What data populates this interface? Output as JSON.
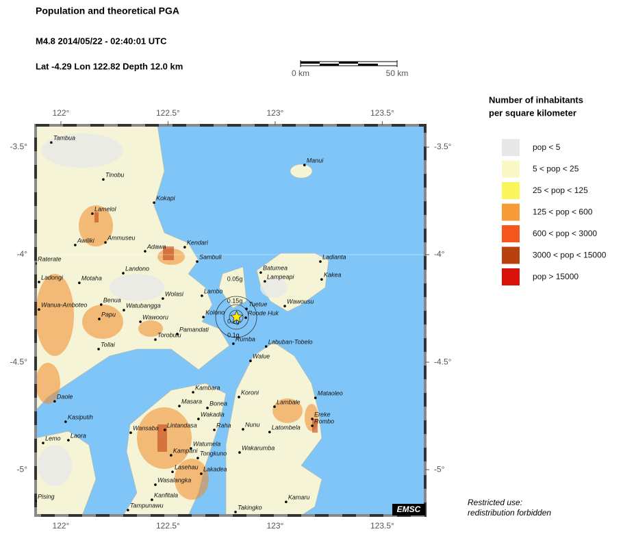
{
  "header": {
    "title": "Population and theoretical PGA",
    "event": "M4.8  2014/05/22 - 02:40:01 UTC",
    "location": "Lat -4.29    Lon 122.82     Depth  12.0 km"
  },
  "scale_bar": {
    "labels": [
      "0 km",
      "50 km"
    ]
  },
  "map": {
    "lonlim": [
      121.882,
      123.7
    ],
    "latlim": [
      -5.213,
      -3.398
    ],
    "lonticks": [
      {
        "value": 122,
        "label": "122°"
      },
      {
        "value": 122.5,
        "label": "122.5°"
      },
      {
        "value": 123,
        "label": "123°"
      },
      {
        "value": 123.5,
        "label": "123.5°"
      }
    ],
    "latticks": [
      {
        "value": -3.5,
        "label": "-3.5°"
      },
      {
        "value": -4,
        "label": "-4°"
      },
      {
        "value": -4.5,
        "label": "-4.5°"
      },
      {
        "value": -5,
        "label": "-5°"
      }
    ],
    "epicenter": {
      "lon": 122.82,
      "lat": -4.29
    },
    "pga_labels": [
      {
        "text": "0.05g",
        "lon": 122.812,
        "lat": -4.115
      },
      {
        "text": "0.15g",
        "lon": 122.812,
        "lat": -4.217
      },
      {
        "text": "0.2g",
        "lon": 122.805,
        "lat": -4.312
      },
      {
        "text": "0.1g",
        "lon": 122.805,
        "lat": -4.376
      }
    ],
    "places": [
      {
        "name": "Tambua",
        "lon": 121.955,
        "lat": -3.478
      },
      {
        "name": "Tinobu",
        "lon": 122.198,
        "lat": -3.65
      },
      {
        "name": "Lamelol",
        "lon": 122.147,
        "lat": -3.809
      },
      {
        "name": "Kokapi",
        "lon": 122.435,
        "lat": -3.758
      },
      {
        "name": "Awiliki",
        "lon": 122.067,
        "lat": -3.955
      },
      {
        "name": "Ammuseu",
        "lon": 122.208,
        "lat": -3.943
      },
      {
        "name": "Adawa",
        "lon": 122.393,
        "lat": -3.984
      },
      {
        "name": "Kendari",
        "lon": 122.578,
        "lat": -3.965
      },
      {
        "name": "Sambuli",
        "lon": 122.636,
        "lat": -4.032
      },
      {
        "name": "Raterate",
        "lon": 121.882,
        "lat": -4.041
      },
      {
        "name": "Ladongi",
        "lon": 121.898,
        "lat": -4.127
      },
      {
        "name": "Motaha",
        "lon": 122.086,
        "lat": -4.131
      },
      {
        "name": "Landono",
        "lon": 122.291,
        "lat": -4.086
      },
      {
        "name": "Wolasi",
        "lon": 122.476,
        "lat": -4.204
      },
      {
        "name": "Lambo",
        "lon": 122.658,
        "lat": -4.191
      },
      {
        "name": "Benua",
        "lon": 122.188,
        "lat": -4.232
      },
      {
        "name": "Wanua-Amboteo",
        "lon": 121.898,
        "lat": -4.255
      },
      {
        "name": "Watubangga",
        "lon": 122.294,
        "lat": -4.258
      },
      {
        "name": "Papu",
        "lon": 122.179,
        "lat": -4.299
      },
      {
        "name": "Wawooru",
        "lon": 122.371,
        "lat": -4.312
      },
      {
        "name": "Kolono",
        "lon": 122.665,
        "lat": -4.29
      },
      {
        "name": "Tuetue",
        "lon": 122.866,
        "lat": -4.252
      },
      {
        "name": "Roode Huk",
        "lon": 122.863,
        "lat": -4.293
      },
      {
        "name": "Pamandati",
        "lon": 122.543,
        "lat": -4.369
      },
      {
        "name": "Torobulu",
        "lon": 122.441,
        "lat": -4.395
      },
      {
        "name": "Rumba",
        "lon": 122.805,
        "lat": -4.414
      },
      {
        "name": "Tollai",
        "lon": 122.176,
        "lat": -4.439
      },
      {
        "name": "Batumea",
        "lon": 122.933,
        "lat": -4.083
      },
      {
        "name": "Lampeapi",
        "lon": 122.952,
        "lat": -4.124
      },
      {
        "name": "Wawousu",
        "lon": 123.045,
        "lat": -4.239
      },
      {
        "name": "Ladianta",
        "lon": 123.211,
        "lat": -4.032
      },
      {
        "name": "Kakea",
        "lon": 123.217,
        "lat": -4.115
      },
      {
        "name": "Manui",
        "lon": 123.137,
        "lat": -3.583
      },
      {
        "name": "Labuban-Tobelo",
        "lon": 122.958,
        "lat": -4.427
      },
      {
        "name": "Walue",
        "lon": 122.885,
        "lat": -4.494
      },
      {
        "name": "Daole",
        "lon": 121.971,
        "lat": -4.682
      },
      {
        "name": "Kasiputih",
        "lon": 122.022,
        "lat": -4.777
      },
      {
        "name": "Lemo",
        "lon": 121.917,
        "lat": -4.876
      },
      {
        "name": "Laora",
        "lon": 122.035,
        "lat": -4.863
      },
      {
        "name": "Koroni",
        "lon": 122.831,
        "lat": -4.662
      },
      {
        "name": "Lambale",
        "lon": 122.997,
        "lat": -4.707
      },
      {
        "name": "Mataoleo",
        "lon": 123.188,
        "lat": -4.666
      },
      {
        "name": "Ereke",
        "lon": 123.173,
        "lat": -4.764
      },
      {
        "name": "Rombo",
        "lon": 123.173,
        "lat": -4.796
      },
      {
        "name": "Nunu",
        "lon": 122.85,
        "lat": -4.812
      },
      {
        "name": "Latombela",
        "lon": 122.974,
        "lat": -4.825
      },
      {
        "name": "Kambara",
        "lon": 122.617,
        "lat": -4.64
      },
      {
        "name": "Masara",
        "lon": 122.553,
        "lat": -4.704
      },
      {
        "name": "Bonea",
        "lon": 122.684,
        "lat": -4.713
      },
      {
        "name": "Wakadia",
        "lon": 122.642,
        "lat": -4.764
      },
      {
        "name": "Wansaba",
        "lon": 122.326,
        "lat": -4.828
      },
      {
        "name": "Lintandasa",
        "lon": 122.485,
        "lat": -4.815
      },
      {
        "name": "Raha",
        "lon": 122.716,
        "lat": -4.815
      },
      {
        "name": "Wakarumba",
        "lon": 122.834,
        "lat": -4.92
      },
      {
        "name": "Watumela",
        "lon": 122.607,
        "lat": -4.901
      },
      {
        "name": "Kampani",
        "lon": 122.514,
        "lat": -4.933
      },
      {
        "name": "Tongkuno",
        "lon": 122.639,
        "lat": -4.946
      },
      {
        "name": "Lasehau",
        "lon": 122.521,
        "lat": -5.01
      },
      {
        "name": "Lakadea",
        "lon": 122.655,
        "lat": -5.019
      },
      {
        "name": "Wasalangka",
        "lon": 122.441,
        "lat": -5.07
      },
      {
        "name": "Kamaru",
        "lon": 123.051,
        "lat": -5.15
      },
      {
        "name": "Kanfitala",
        "lon": 122.425,
        "lat": -5.14
      },
      {
        "name": "Tampunawu",
        "lon": 122.313,
        "lat": -5.188
      },
      {
        "name": "Takingko",
        "lon": 122.815,
        "lat": -5.197
      },
      {
        "name": "Pising",
        "lon": 121.882,
        "lat": -5.146
      }
    ]
  },
  "legend": {
    "title": [
      "Number of inhabitants",
      "per square kilometer"
    ],
    "entries": [
      {
        "label": "pop < 5",
        "color": "#e8e8e8"
      },
      {
        "label": "5 < pop < 25",
        "color": "#fbf8c8"
      },
      {
        "label": "25 < pop < 125",
        "color": "#faf55a"
      },
      {
        "label": "125 < pop < 600",
        "color": "#f79a38"
      },
      {
        "label": "600 < pop < 3000",
        "color": "#f5571c"
      },
      {
        "label": "3000 < pop < 15000",
        "color": "#b8420f"
      },
      {
        "label": "pop > 15000",
        "color": "#d9120c"
      }
    ]
  },
  "notice": [
    "Restricted use:",
    "redistribution forbidden"
  ],
  "logo": "EMSC"
}
